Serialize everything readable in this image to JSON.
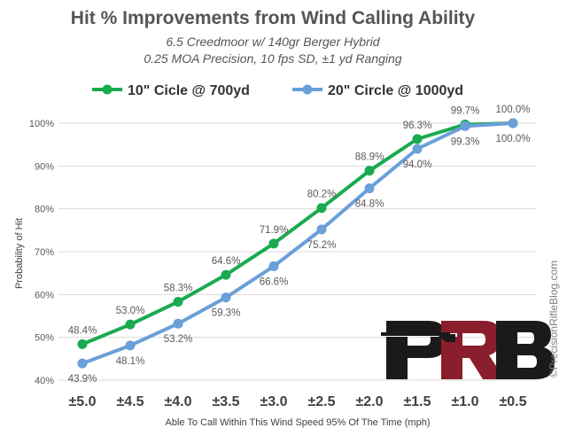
{
  "chart_data": {
    "type": "line",
    "title": "Hit % Improvements from Wind Calling Ability",
    "subtitle_lines": [
      "6.5 Creedmoor w/ 140gr Berger Hybrid",
      "0.25 MOA Precision, 10 fps SD, ±1 yd Ranging"
    ],
    "xlabel": "Able To Call Within This Wind Speed 95% Of The Time (mph)",
    "ylabel": "Probability of Hit",
    "categories": [
      "±5.0",
      "±4.5",
      "±4.0",
      "±3.5",
      "±3.0",
      "±2.5",
      "±2.0",
      "±1.5",
      "±1.0",
      "±0.5"
    ],
    "ylim": [
      40,
      100
    ],
    "yticks": [
      "40%",
      "50%",
      "60%",
      "70%",
      "80%",
      "90%",
      "100%"
    ],
    "grid": true,
    "legend_position": "top",
    "series": [
      {
        "name": "10\" Cicle @ 700yd",
        "color": "#1aaa50",
        "label_position": "above",
        "values": [
          48.4,
          53.0,
          58.3,
          64.6,
          71.9,
          80.2,
          88.9,
          96.3,
          99.7,
          100.0
        ],
        "labels": [
          "48.4%",
          "53.0%",
          "58.3%",
          "64.6%",
          "71.9%",
          "80.2%",
          "88.9%",
          "96.3%",
          "99.7%",
          "100.0%"
        ]
      },
      {
        "name": "20\" Circle @ 1000yd",
        "color": "#6a9fd8",
        "label_position": "below",
        "values": [
          43.9,
          48.1,
          53.2,
          59.3,
          66.6,
          75.2,
          84.8,
          94.0,
          99.3,
          100.0
        ],
        "labels": [
          "43.9%",
          "48.1%",
          "53.2%",
          "59.3%",
          "66.6%",
          "75.2%",
          "84.8%",
          "94.0%",
          "99.3%",
          "100.0%"
        ]
      }
    ]
  },
  "watermark": "©PrecisionRifleBlog.com",
  "logo": {
    "text": "PRB",
    "colors": [
      "#1a1a1a",
      "#8b1e2d"
    ]
  }
}
